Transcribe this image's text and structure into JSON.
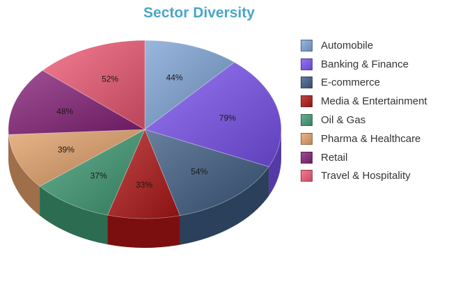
{
  "chart_data": {
    "type": "pie",
    "title": "Sector Diversity",
    "categories": [
      "Automobile",
      "Banking & Finance",
      "E-commerce",
      "Media & Entertainment",
      "Oil & Gas",
      "Pharma & Healthcare",
      "Retail",
      "Travel & Hospitality"
    ],
    "values": [
      44,
      79,
      54,
      33,
      37,
      39,
      48,
      52
    ],
    "data_labels": [
      "44%",
      "79%",
      "54%",
      "33%",
      "37%",
      "39%",
      "48%",
      "52%"
    ],
    "colors": [
      "#7da4d6",
      "#7a52ee",
      "#3d5c82",
      "#b01616",
      "#3f9a73",
      "#e29f68",
      "#852079",
      "#ef5874"
    ],
    "style": "3d",
    "legend_position": "right"
  }
}
